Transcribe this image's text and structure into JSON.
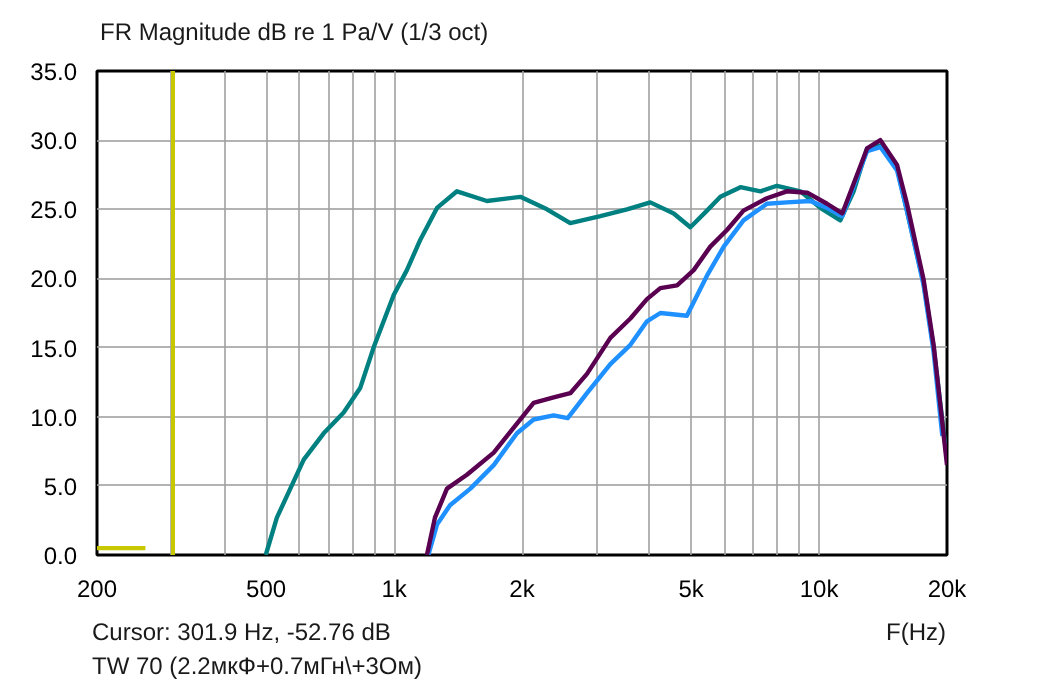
{
  "chart_data": {
    "type": "line",
    "title": "FR Magnitude dB re 1 Pa/V (1/3 oct)",
    "xlabel": "F(Hz)",
    "annotations": [
      "Cursor: 301.9 Hz, -52.76 dB",
      "TW 70 (2.2мкФ+0.7мГн\\+3Ом)"
    ],
    "log": "x",
    "grid": true,
    "marker": "none",
    "line_style": "solid",
    "xlim": [
      200,
      20000
    ],
    "ylim": [
      0,
      35
    ],
    "xticks": [
      200,
      {
        "value": 300,
        "label": null
      },
      {
        "value": 400,
        "label": null
      },
      500,
      {
        "value": 600,
        "label": null
      },
      {
        "value": 700,
        "label": null
      },
      {
        "value": 800,
        "label": null
      },
      {
        "value": 900,
        "label": null
      },
      {
        "value": 1000,
        "label": "1k"
      },
      {
        "value": 2000,
        "label": "2k"
      },
      {
        "value": 3000,
        "label": null
      },
      {
        "value": 4000,
        "label": null
      },
      {
        "value": 5000,
        "label": "5k"
      },
      {
        "value": 6000,
        "label": null
      },
      {
        "value": 7000,
        "label": null
      },
      {
        "value": 8000,
        "label": null
      },
      {
        "value": 9000,
        "label": null
      },
      {
        "value": 10000,
        "label": "10k"
      },
      {
        "value": 20000,
        "label": "20k"
      }
    ],
    "yticks": [
      {
        "value": 0,
        "label": "0.0"
      },
      {
        "value": 5,
        "label": "5.0"
      },
      {
        "value": 10,
        "label": "10.0"
      },
      {
        "value": 15,
        "label": "15.0"
      },
      {
        "value": 20,
        "label": "20.0"
      },
      {
        "value": 25,
        "label": "25.0"
      },
      {
        "value": 30,
        "label": "30.0"
      },
      {
        "value": 35,
        "label": "35.0"
      }
    ],
    "ref_lines": [
      {
        "axis": "x",
        "value": 301.9,
        "color": "#c8c800"
      }
    ],
    "series": [
      {
        "color": "#008080",
        "x": [
          499,
          530,
          570,
          613,
          683,
          761,
          833,
          895,
          998,
          1072,
          1153,
          1262,
          1406,
          1654,
          1982,
          2290,
          2598,
          3058,
          3532,
          4008,
          4550,
          4980,
          5448,
          5860,
          6532,
          7280,
          7960,
          9040,
          10070,
          11220,
          12060,
          12970,
          13940,
          15260,
          16100,
          17620,
          18600,
          20000
        ],
        "values": [
          0,
          2.7,
          4.8,
          6.9,
          8.8,
          10.3,
          12.1,
          15,
          18.8,
          20.6,
          22.8,
          25.1,
          26.3,
          25.6,
          25.9,
          25.0,
          24.0,
          24.5,
          25.0,
          25.5,
          24.7,
          23.7,
          24.9,
          25.9,
          26.6,
          26.3,
          26.7,
          26.3,
          25.1,
          24.2,
          26.3,
          29.4,
          29.6,
          28,
          24.9,
          19.7,
          15,
          6.9
        ]
      },
      {
        "color": "#1e90ff",
        "x": [
          1204,
          1262,
          1354,
          1512,
          1716,
          1946,
          2130,
          2374,
          2562,
          2844,
          3228,
          3598,
          3936,
          4232,
          4886,
          5448,
          5966,
          6640,
          7540,
          8400,
          9540,
          10440,
          11340,
          12970,
          13940,
          15260,
          16100,
          17620,
          18600,
          19500
        ],
        "values": [
          0,
          2.2,
          3.6,
          4.8,
          6.5,
          8.8,
          9.8,
          10.1,
          9.9,
          11.7,
          13.8,
          15.2,
          16.9,
          17.5,
          17.3,
          20.2,
          22.3,
          24.2,
          25.4,
          25.5,
          25.6,
          25.1,
          24.5,
          29.2,
          29.5,
          27.8,
          24.9,
          19.5,
          14.7,
          8.6
        ]
      },
      {
        "color": "#5a0050",
        "x": [
          1195,
          1248,
          1332,
          1484,
          1716,
          1946,
          2130,
          2374,
          2598,
          2844,
          3228,
          3598,
          3936,
          4232,
          4634,
          5070,
          5548,
          6072,
          6640,
          7540,
          8400,
          9380,
          10440,
          11340,
          12970,
          13940,
          15260,
          16100,
          17620,
          18600,
          20000
        ],
        "values": [
          0,
          2.7,
          4.8,
          5.8,
          7.4,
          9.5,
          11,
          11.4,
          11.7,
          13.1,
          15.7,
          17.1,
          18.5,
          19.3,
          19.5,
          20.6,
          22.3,
          23.5,
          24.9,
          25.8,
          26.3,
          26.2,
          25.4,
          24.7,
          29.4,
          30.0,
          28.2,
          25.4,
          19.9,
          15.2,
          6.5
        ]
      },
      {
        "color": "#c8c800",
        "x": [
          200,
          260
        ],
        "values": [
          0.5,
          0.5
        ]
      }
    ]
  }
}
